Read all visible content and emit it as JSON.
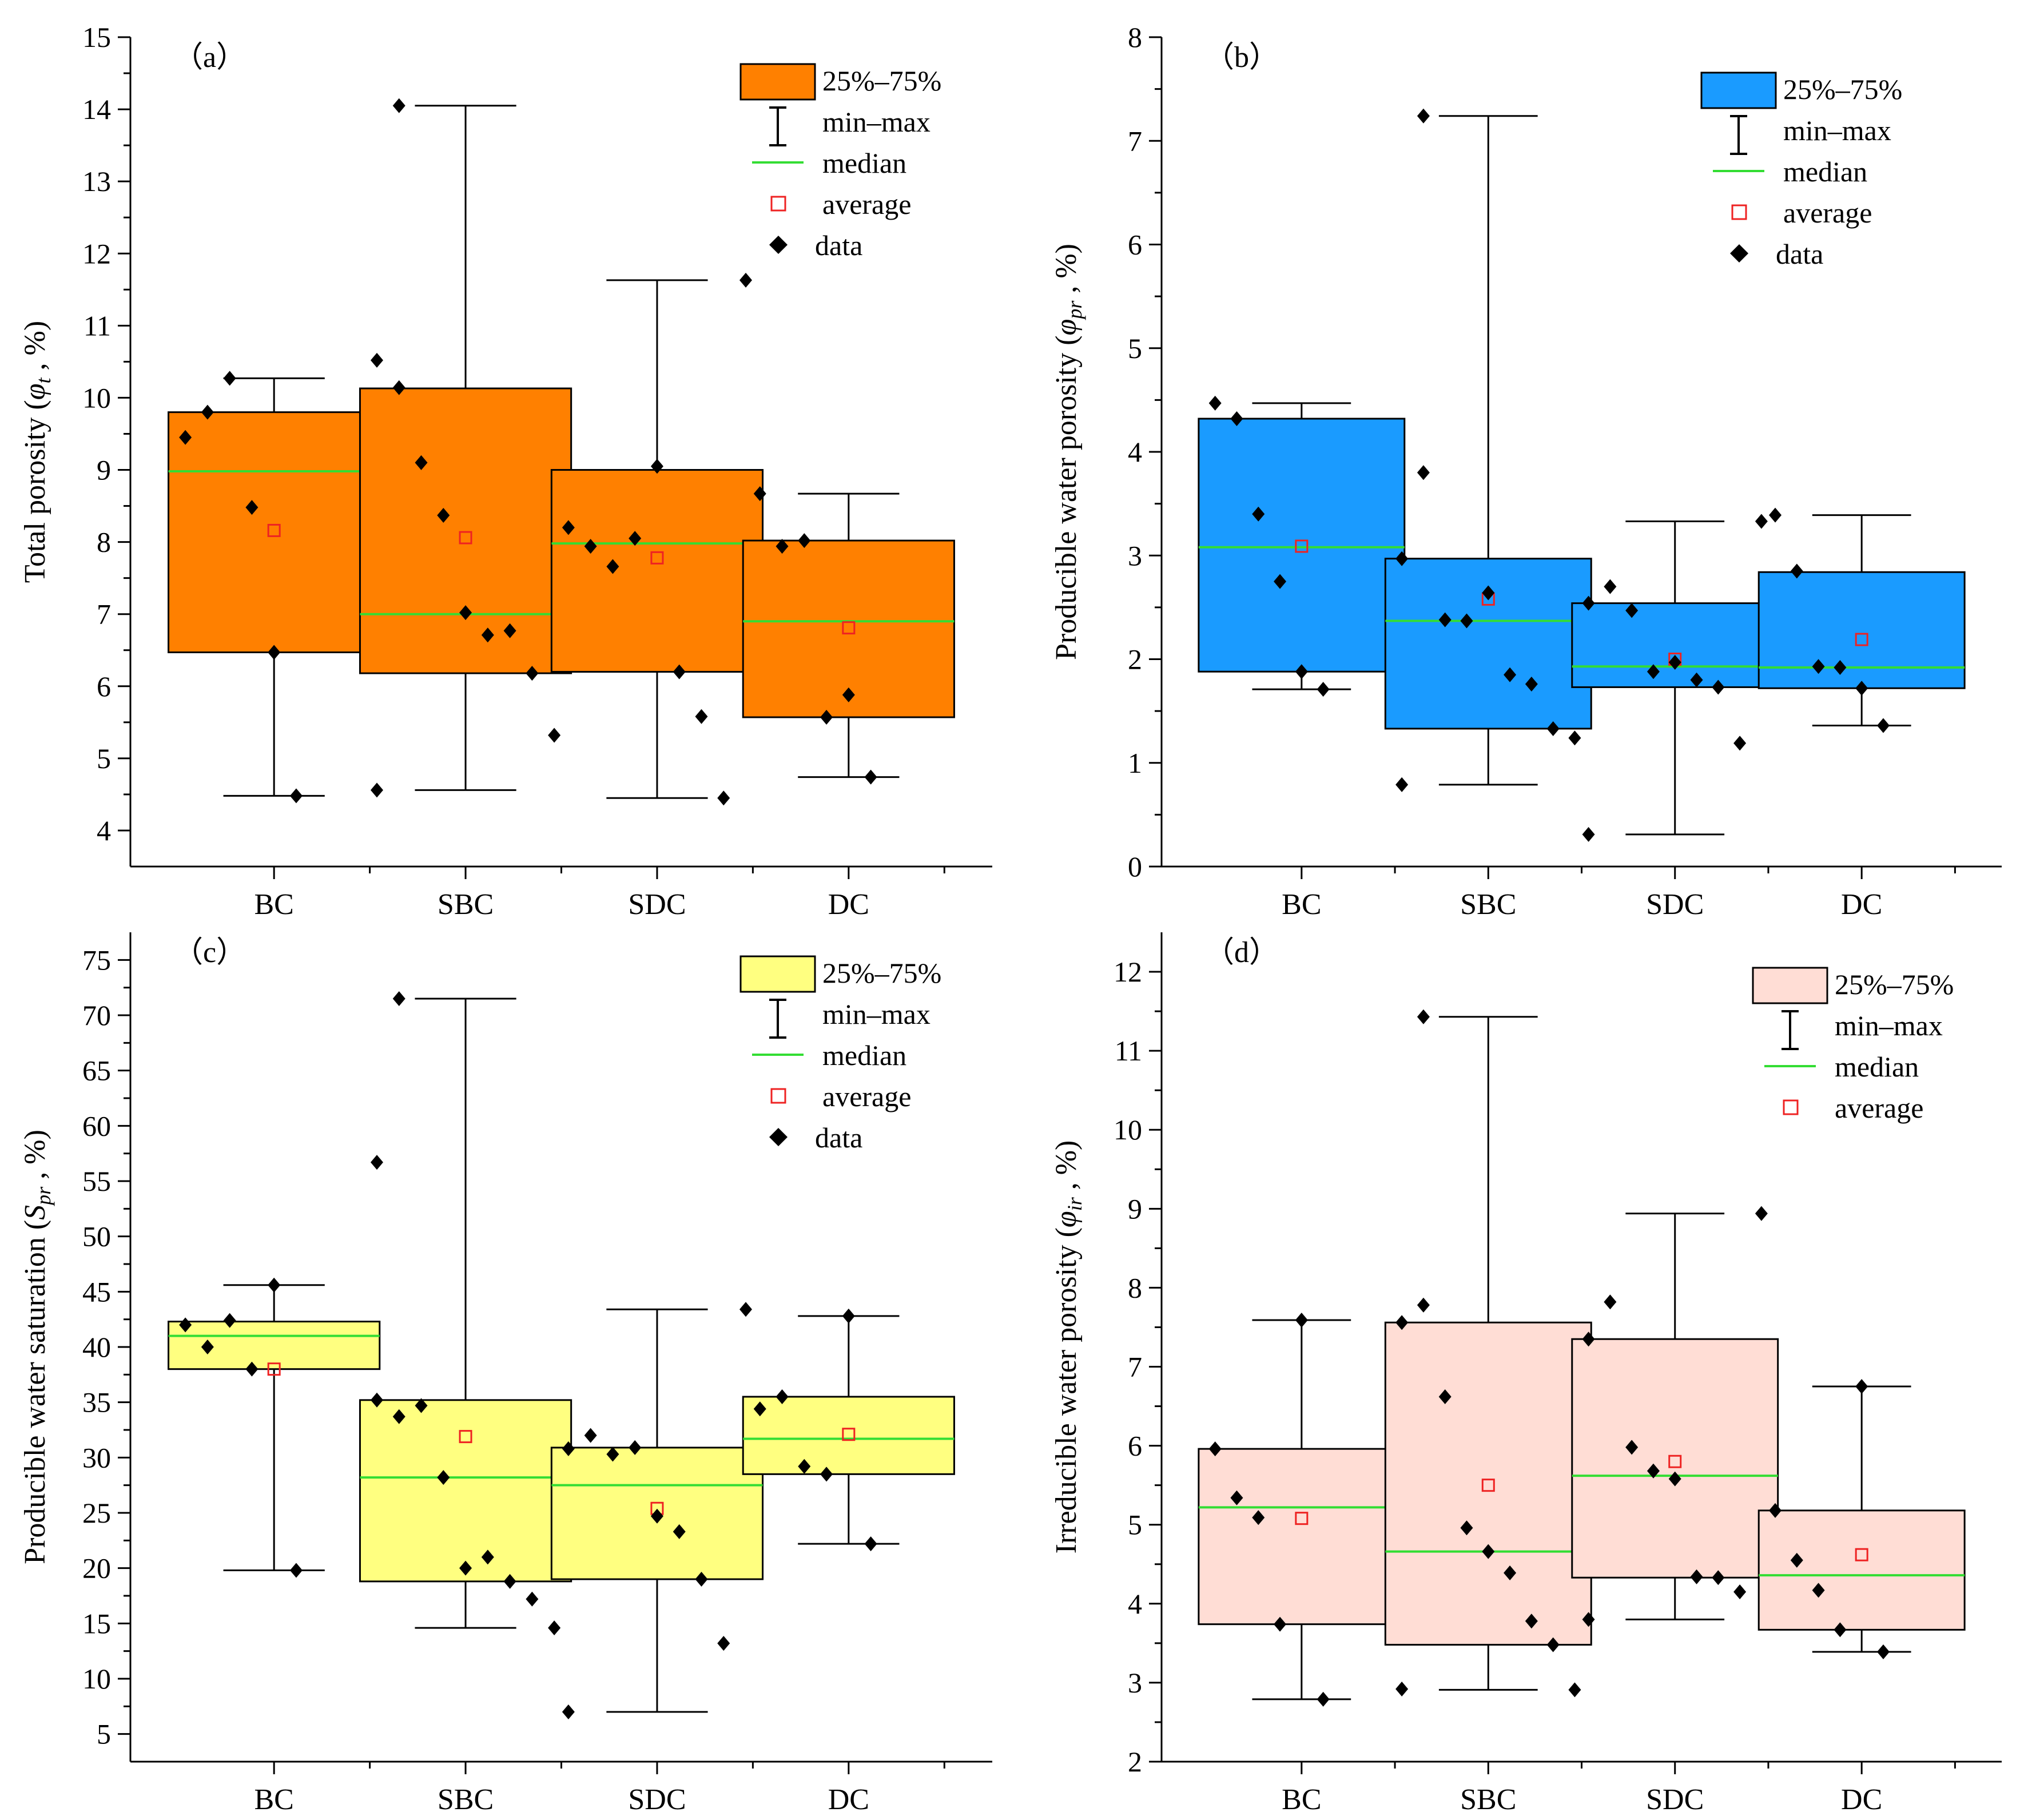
{
  "chart_data": [
    {
      "type": "box",
      "panel_label": "（a）",
      "ylabel_main": "Total porosity (",
      "ylabel_symbol": "φ",
      "ylabel_sub": "t",
      "ylabel_tail": " , %)",
      "ylim": [
        3.5,
        15
      ],
      "yticks": [
        "4",
        "5",
        "6",
        "7",
        "8",
        "9",
        "10",
        "11",
        "12",
        "13",
        "14",
        "15"
      ],
      "box_color": "#ff8000",
      "categories": [
        "BC",
        "SBC",
        "SDC",
        "DC"
      ],
      "legend": {
        "box": "25%–75%",
        "whisker": "min–max",
        "median": "median",
        "average": "average",
        "data": "data"
      },
      "series": [
        {
          "name": "BC",
          "q1": 6.47,
          "q3": 9.8,
          "min": 4.48,
          "max": 10.27,
          "median": 8.98,
          "average": 8.16,
          "data": [
            9.45,
            9.8,
            10.27,
            8.48,
            6.47,
            4.48
          ]
        },
        {
          "name": "SBC",
          "q1": 6.18,
          "q3": 10.13,
          "min": 4.56,
          "max": 14.05,
          "median": 7.0,
          "average": 8.06,
          "data": [
            10.52,
            10.14,
            9.1,
            8.37,
            7.02,
            6.71,
            6.77,
            6.18,
            5.32,
            4.56,
            14.05
          ]
        },
        {
          "name": "SDC",
          "q1": 6.2,
          "q3": 9.0,
          "min": 4.45,
          "max": 11.63,
          "median": 7.98,
          "average": 7.78,
          "data": [
            8.2,
            7.94,
            7.66,
            8.05,
            9.05,
            6.2,
            5.58,
            4.45,
            11.63
          ]
        },
        {
          "name": "DC",
          "q1": 5.57,
          "q3": 8.02,
          "min": 4.74,
          "max": 8.67,
          "median": 6.9,
          "average": 6.81,
          "data": [
            8.67,
            7.94,
            8.02,
            5.57,
            5.88,
            4.74
          ]
        }
      ]
    },
    {
      "type": "box",
      "panel_label": "（b）",
      "ylabel_main": "Producible water porosity (",
      "ylabel_symbol": "φ",
      "ylabel_sub": "pr",
      "ylabel_tail": " , %)",
      "ylim": [
        0,
        8
      ],
      "yticks": [
        "0",
        "1",
        "2",
        "3",
        "4",
        "5",
        "6",
        "7",
        "8"
      ],
      "box_color": "#1a9bff",
      "categories": [
        "BC",
        "SBC",
        "SDC",
        "DC"
      ],
      "legend": {
        "box": "25%–75%",
        "whisker": "min–max",
        "median": "median",
        "average": "average",
        "data": "data"
      },
      "series": [
        {
          "name": "BC",
          "q1": 1.88,
          "q3": 4.32,
          "min": 1.71,
          "max": 4.47,
          "median": 3.08,
          "average": 3.09,
          "data": [
            4.47,
            4.32,
            3.4,
            2.75,
            1.88,
            1.71
          ]
        },
        {
          "name": "SBC",
          "q1": 1.33,
          "q3": 2.97,
          "min": 0.79,
          "max": 7.24,
          "median": 2.37,
          "average": 2.58,
          "data": [
            2.97,
            3.8,
            2.38,
            2.37,
            2.64,
            1.85,
            1.76,
            1.33,
            1.24,
            0.79,
            7.24
          ]
        },
        {
          "name": "SDC",
          "q1": 1.73,
          "q3": 2.54,
          "min": 0.31,
          "max": 3.33,
          "median": 1.93,
          "average": 2.0,
          "data": [
            2.54,
            2.7,
            2.47,
            1.88,
            1.97,
            1.8,
            1.73,
            1.19,
            3.33,
            0.31
          ]
        },
        {
          "name": "DC",
          "q1": 1.72,
          "q3": 2.84,
          "min": 1.36,
          "max": 3.39,
          "median": 1.92,
          "average": 2.19,
          "data": [
            3.39,
            2.85,
            1.93,
            1.92,
            1.72,
            1.36
          ]
        }
      ]
    },
    {
      "type": "box",
      "panel_label": "（c）",
      "ylabel_main": "Producible water saturation (",
      "ylabel_symbol": "S",
      "ylabel_sub": "pr",
      "ylabel_tail": " , %)",
      "ylim": [
        2.5,
        77.5
      ],
      "yticks": [
        "5",
        "10",
        "15",
        "20",
        "25",
        "30",
        "35",
        "40",
        "45",
        "50",
        "55",
        "60",
        "65",
        "70",
        "75"
      ],
      "box_color": "#ffff80",
      "categories": [
        "BC",
        "SBC",
        "SDC",
        "DC"
      ],
      "legend": {
        "box": "25%–75%",
        "whisker": "min–max",
        "median": "median",
        "average": "average",
        "data": "data"
      },
      "series": [
        {
          "name": "BC",
          "q1": 38.0,
          "q3": 42.3,
          "min": 19.8,
          "max": 45.6,
          "median": 41.0,
          "average": 38.0,
          "data": [
            42.0,
            40.0,
            42.4,
            38.0,
            45.6,
            19.8
          ]
        },
        {
          "name": "SBC",
          "q1": 18.8,
          "q3": 35.2,
          "min": 14.6,
          "max": 71.5,
          "median": 28.2,
          "average": 31.9,
          "data": [
            35.2,
            33.7,
            34.7,
            28.2,
            20.0,
            21.0,
            18.8,
            17.2,
            14.6,
            56.7,
            71.5
          ]
        },
        {
          "name": "SDC",
          "q1": 19.0,
          "q3": 30.9,
          "min": 7.0,
          "max": 43.4,
          "median": 27.5,
          "average": 25.4,
          "data": [
            30.8,
            32.0,
            30.3,
            30.9,
            24.7,
            23.3,
            19.0,
            13.2,
            43.4,
            7.0
          ]
        },
        {
          "name": "DC",
          "q1": 28.5,
          "q3": 35.5,
          "min": 22.2,
          "max": 42.8,
          "median": 31.7,
          "average": 32.1,
          "data": [
            34.4,
            35.5,
            29.2,
            28.5,
            42.8,
            22.2
          ]
        }
      ]
    },
    {
      "type": "box",
      "panel_label": "（d）",
      "ylabel_main": "Irreducible water porosity (",
      "ylabel_symbol": "φ",
      "ylabel_sub": "ir",
      "ylabel_tail": " , %)",
      "ylim": [
        2,
        12.5
      ],
      "yticks": [
        "2",
        "3",
        "4",
        "5",
        "6",
        "7",
        "8",
        "9",
        "10",
        "11",
        "12"
      ],
      "box_color": "#ffddd5",
      "categories": [
        "BC",
        "SBC",
        "SDC",
        "DC"
      ],
      "legend": {
        "box": "25%–75%",
        "whisker": "min–max",
        "median": "median",
        "average": "average"
      },
      "series": [
        {
          "name": "BC",
          "q1": 3.74,
          "q3": 5.96,
          "min": 2.79,
          "max": 7.59,
          "median": 5.22,
          "average": 5.08,
          "data": [
            5.96,
            5.34,
            5.09,
            3.74,
            7.59,
            2.79
          ]
        },
        {
          "name": "SBC",
          "q1": 3.48,
          "q3": 7.56,
          "min": 2.91,
          "max": 11.43,
          "median": 4.66,
          "average": 5.5,
          "data": [
            7.56,
            7.78,
            6.62,
            4.96,
            4.66,
            4.39,
            3.78,
            3.48,
            2.91,
            2.92,
            11.43
          ]
        },
        {
          "name": "SDC",
          "q1": 4.33,
          "q3": 7.35,
          "min": 3.8,
          "max": 8.94,
          "median": 5.62,
          "average": 5.8,
          "data": [
            7.35,
            7.82,
            5.98,
            5.68,
            5.58,
            4.34,
            4.33,
            4.15,
            8.94,
            3.8
          ]
        },
        {
          "name": "DC",
          "q1": 3.67,
          "q3": 5.18,
          "min": 3.39,
          "max": 6.75,
          "median": 4.36,
          "average": 4.62,
          "data": [
            5.18,
            4.55,
            4.17,
            3.67,
            6.75,
            3.39
          ]
        }
      ]
    }
  ]
}
